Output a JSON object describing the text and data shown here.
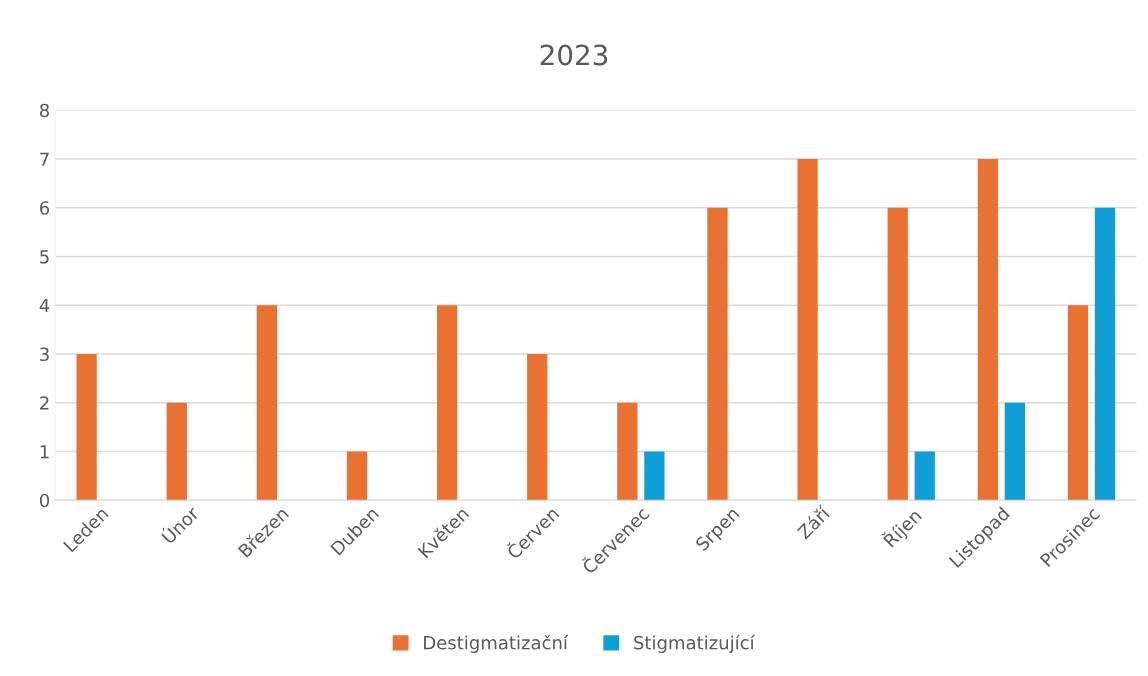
{
  "chart_data": {
    "type": "bar",
    "title": "2023",
    "categories": [
      "Leden",
      "Únor",
      "Březen",
      "Duben",
      "Květen",
      "Červen",
      "Červenec",
      "Srpen",
      "Září",
      "Říjen",
      "Listopad",
      "Prosinec"
    ],
    "series": [
      {
        "name": "Destigmatizační",
        "color": "#e97132",
        "values": [
          3,
          2,
          4,
          1,
          4,
          3,
          2,
          6,
          7,
          6,
          7,
          4
        ]
      },
      {
        "name": "Stigmatizující",
        "color": "#0f9ed5",
        "values": [
          null,
          null,
          null,
          null,
          null,
          null,
          1,
          null,
          null,
          1,
          2,
          6
        ]
      }
    ],
    "ylim": [
      0,
      8
    ],
    "yticks": [
      0,
      1,
      2,
      3,
      4,
      5,
      6,
      7,
      8
    ],
    "grid": "y",
    "legend": "bottom"
  }
}
